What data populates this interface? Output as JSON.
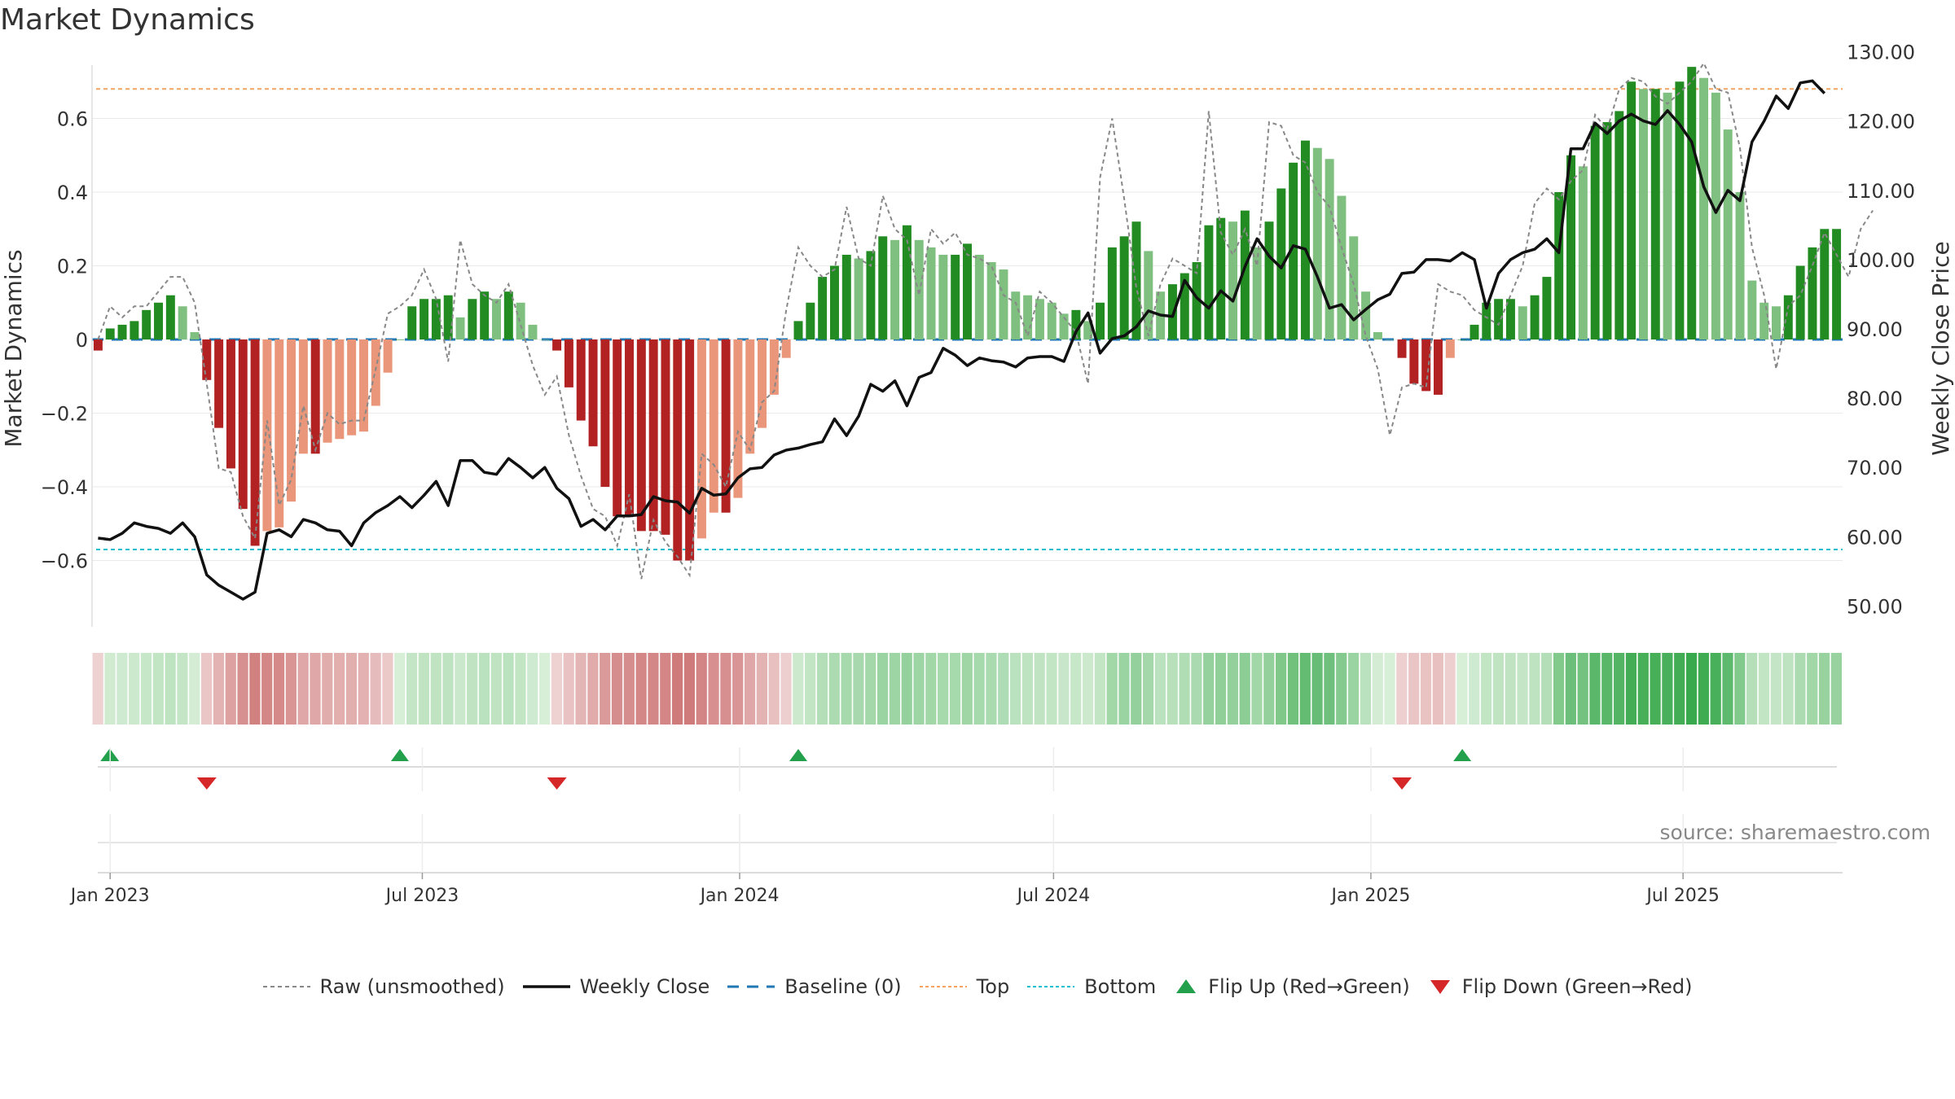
{
  "title": "Market Dynamics",
  "source_note": "source: sharemaestro.com",
  "chart_data": {
    "type": "bar",
    "x_label": "",
    "ylabel_left": "Market Dynamics",
    "ylabel_right": "Weekly Close Price",
    "left_axis": {
      "range": [
        -0.78,
        0.8
      ],
      "ticks": [
        -0.6,
        -0.4,
        -0.2,
        0,
        0.2,
        0.4,
        0.6
      ],
      "tick_labels": [
        "−0.6",
        "−0.4",
        "−0.2",
        "0",
        "0.2",
        "0.4",
        "0.6"
      ]
    },
    "right_axis": {
      "range": [
        47,
        131
      ],
      "ticks": [
        50,
        60,
        70,
        80,
        90,
        100,
        110,
        120,
        130
      ],
      "tick_labels": [
        "50.00",
        "60.00",
        "70.00",
        "80.00",
        "90.00",
        "100.00",
        "110.00",
        "120.00",
        "130.00"
      ]
    },
    "x_ticks": [
      {
        "date": "2023-01-01",
        "label": "Jan 2023"
      },
      {
        "date": "2023-07-01",
        "label": "Jul 2023"
      },
      {
        "date": "2024-01-01",
        "label": "Jan 2024"
      },
      {
        "date": "2024-07-01",
        "label": "Jul 2024"
      },
      {
        "date": "2025-01-01",
        "label": "Jan 2025"
      },
      {
        "date": "2025-07-01",
        "label": "Jul 2025"
      }
    ],
    "start_date": "2022-12-25",
    "interval": "weekly",
    "grid": true,
    "top_level": 0.68,
    "bottom_level": -0.57,
    "baseline": 0,
    "bars": [
      -0.03,
      0.03,
      0.04,
      0.05,
      0.08,
      0.1,
      0.12,
      0.09,
      0.02,
      -0.11,
      -0.24,
      -0.35,
      -0.46,
      -0.56,
      -0.52,
      -0.51,
      -0.44,
      -0.31,
      -0.31,
      -0.28,
      -0.27,
      -0.26,
      -0.25,
      -0.18,
      -0.09,
      0,
      0.09,
      0.11,
      0.11,
      0.12,
      0.06,
      0.11,
      0.13,
      0.11,
      0.13,
      0.1,
      0.04,
      0,
      -0.03,
      -0.13,
      -0.22,
      -0.29,
      -0.4,
      -0.48,
      -0.48,
      -0.52,
      -0.52,
      -0.53,
      -0.6,
      -0.6,
      -0.54,
      -0.47,
      -0.47,
      -0.43,
      -0.31,
      -0.24,
      -0.15,
      -0.05,
      0.05,
      0.1,
      0.17,
      0.2,
      0.23,
      0.22,
      0.24,
      0.28,
      0.27,
      0.31,
      0.27,
      0.25,
      0.23,
      0.23,
      0.26,
      0.23,
      0.21,
      0.19,
      0.13,
      0.12,
      0.11,
      0.1,
      0.07,
      0.08,
      0.05,
      0.1,
      0.25,
      0.28,
      0.32,
      0.24,
      0.13,
      0.15,
      0.18,
      0.21,
      0.31,
      0.33,
      0.32,
      0.35,
      0.25,
      0.32,
      0.41,
      0.48,
      0.54,
      0.52,
      0.49,
      0.39,
      0.28,
      0.13,
      0.02,
      0,
      -0.05,
      -0.12,
      -0.14,
      -0.15,
      -0.05,
      0,
      0.04,
      0.1,
      0.11,
      0.11,
      0.09,
      0.12,
      0.17,
      0.4,
      0.5,
      0.47,
      0.58,
      0.59,
      0.62,
      0.7,
      0.68,
      0.68,
      0.67,
      0.7,
      0.74,
      0.71,
      0.67,
      0.57,
      0.4,
      0.16,
      0.1,
      0.09,
      0.12,
      0.2,
      0.25,
      0.3,
      0.3
    ],
    "raw": [
      0,
      0.09,
      0.06,
      0.09,
      0.09,
      0.13,
      0.17,
      0.17,
      0.1,
      -0.12,
      -0.35,
      -0.36,
      -0.48,
      -0.54,
      -0.22,
      -0.45,
      -0.38,
      -0.18,
      -0.3,
      -0.2,
      -0.23,
      -0.22,
      -0.22,
      -0.08,
      0.07,
      0.09,
      0.12,
      0.19,
      0.11,
      -0.06,
      0.27,
      0.15,
      0.12,
      0.1,
      0.15,
      0.04,
      -0.07,
      -0.15,
      -0.1,
      -0.26,
      -0.37,
      -0.46,
      -0.48,
      -0.56,
      -0.42,
      -0.65,
      -0.49,
      -0.55,
      -0.59,
      -0.64,
      -0.31,
      -0.34,
      -0.4,
      -0.25,
      -0.3,
      -0.17,
      -0.14,
      0.08,
      0.25,
      0.2,
      0.17,
      0.19,
      0.36,
      0.22,
      0.2,
      0.39,
      0.3,
      0.27,
      0.12,
      0.3,
      0.26,
      0.29,
      0.23,
      0.22,
      0.2,
      0.12,
      0.1,
      0.01,
      0.13,
      0.1,
      0.06,
      0.02,
      -0.12,
      0.44,
      0.6,
      0.38,
      0.14,
      0.01,
      0.15,
      0.22,
      0.2,
      0.18,
      0.62,
      0.29,
      0.23,
      0.3,
      0.2,
      0.59,
      0.58,
      0.5,
      0.48,
      0.4,
      0.36,
      0.25,
      0.15,
      0.01,
      -0.08,
      -0.26,
      -0.13,
      -0.12,
      -0.13,
      0.15,
      0.13,
      0.12,
      0.08,
      0.06,
      0.04,
      0.12,
      0.2,
      0.37,
      0.41,
      0.38,
      0.43,
      0.46,
      0.61,
      0.57,
      0.68,
      0.71,
      0.7,
      0.66,
      0.64,
      0.67,
      0.7,
      0.75,
      0.68,
      0.67,
      0.52,
      0.25,
      0.12,
      -0.08,
      0.09,
      0.12,
      0.2,
      0.29,
      0.23,
      0.17,
      0.3,
      0.35
    ],
    "close": [
      59.8,
      59.6,
      60.5,
      62.0,
      61.5,
      61.2,
      60.5,
      62,
      60,
      54.5,
      53,
      52,
      51,
      52,
      60.5,
      61,
      60,
      62.5,
      62,
      61,
      60.8,
      58.7,
      62,
      63.5,
      64.5,
      65.8,
      64.2,
      66,
      68,
      64.5,
      71,
      71,
      69.3,
      69,
      71.3,
      70,
      68.5,
      70,
      67,
      65.5,
      61.5,
      62.5,
      61,
      63,
      63,
      63.2,
      65.8,
      65.2,
      65,
      63.4,
      67,
      66,
      66.2,
      68.5,
      69.8,
      70,
      71.8,
      72.5,
      72.8,
      73.3,
      73.7,
      77,
      74.6,
      77.4,
      82,
      81,
      82.5,
      78.9,
      83,
      83.7,
      87.2,
      86.2,
      84.7,
      85.8,
      85.4,
      85.2,
      84.5,
      85.8,
      86,
      86,
      85.3,
      89.6,
      92.3,
      86.5,
      88.6,
      89,
      90.3,
      92.6,
      92,
      91.8,
      97,
      94.5,
      93,
      95.5,
      94,
      99,
      103,
      100.5,
      98.8,
      102,
      101.5,
      97.5,
      93,
      93.5,
      91.3,
      92.8,
      94.2,
      95,
      98,
      98.2,
      100,
      100,
      99.8,
      101,
      100,
      93,
      98,
      100,
      101,
      101.5,
      103,
      101,
      116,
      116,
      119.7,
      118.2,
      120,
      121,
      120,
      119.5,
      121.5,
      119.5,
      117,
      110.5,
      106.8,
      110,
      108.5,
      117,
      120,
      123.6,
      121.8,
      125.5,
      125.8,
      124
    ]
  },
  "heat_strip": {
    "label": ""
  },
  "legend": {
    "raw": "Raw (unsmoothed)",
    "close": "Weekly Close",
    "baseline": "Baseline (0)",
    "top": "Top",
    "bottom": "Bottom",
    "flip_up": "Flip Up (Red→Green)",
    "flip_down": "Flip Down (Green→Red)"
  },
  "colors": {
    "bar_strong_up": "#228b22",
    "bar_weak_up": "#7fbf7f",
    "bar_strong_down": "#b22222",
    "bar_weak_down": "#e9967a",
    "close_line": "#111111",
    "raw_line": "#888888",
    "baseline": "#1f77b4",
    "top": "#f4a460",
    "bottom": "#17becf",
    "flip_up": "#22a04b",
    "flip_down": "#d62728"
  }
}
